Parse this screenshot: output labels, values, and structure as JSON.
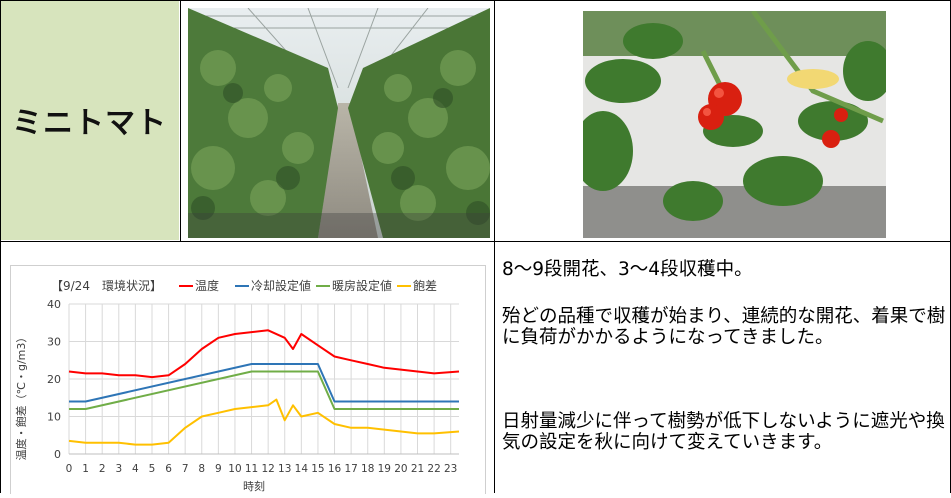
{
  "crop_name": "ミニトマト",
  "photos": {
    "greenhouse": "greenhouse-rows-photo",
    "tomatoes": "ripe-cherry-tomatoes-photo"
  },
  "notes": [
    "8～9段開花、3～4段収穫中。",
    "殆どの品種で収穫が始まり、連続的な開花、着果で樹に負荷がかかるようになってきました。",
    "日射量減少に伴って樹勢が低下しないように遮光や換気の設定を秋に向けて変えていきます。"
  ],
  "colors": {
    "title_bg": "#d7e4bd",
    "temp": "#ff0000",
    "cooling": "#2e75b6",
    "heating": "#70ad47",
    "saturation": "#ffc000"
  },
  "chart_data": {
    "type": "line",
    "title": "【9/24　環境状況】",
    "xlabel": "時刻",
    "ylabel": "温度・飽差（℃・g/m3）",
    "x_ticks": [
      "0",
      "1",
      "2",
      "3",
      "4",
      "5",
      "6",
      "7",
      "8",
      "9",
      "10",
      "11",
      "12",
      "13",
      "14",
      "15",
      "16",
      "17",
      "18",
      "19",
      "20",
      "21",
      "22",
      "23"
    ],
    "xlim": [
      0,
      23.5
    ],
    "ylim": [
      0,
      40
    ],
    "y_ticks": [
      "0",
      "10",
      "20",
      "30",
      "40"
    ],
    "grid": true,
    "legend": "top",
    "series": [
      {
        "name": "温度",
        "color": "#ff0000",
        "x": [
          0,
          1,
          2,
          3,
          4,
          5,
          6,
          7,
          8,
          9,
          10,
          11,
          12,
          13,
          13.5,
          14,
          15,
          16,
          17,
          18,
          19,
          20,
          21,
          22,
          23.5
        ],
        "y": [
          22,
          21.5,
          21.5,
          21,
          21,
          20.5,
          21,
          24,
          28,
          31,
          32,
          32.5,
          33,
          31,
          28,
          32,
          29,
          26,
          25,
          24,
          23,
          22.5,
          22,
          21.5,
          22
        ]
      },
      {
        "name": "冷却設定値",
        "color": "#2e75b6",
        "x": [
          0,
          1,
          11,
          15,
          16,
          23.5
        ],
        "y": [
          14,
          14,
          24,
          24,
          14,
          14
        ]
      },
      {
        "name": "暖房設定値",
        "color": "#70ad47",
        "x": [
          0,
          1,
          11,
          15,
          16,
          23.5
        ],
        "y": [
          12,
          12,
          22,
          22,
          12,
          12
        ]
      },
      {
        "name": "飽差",
        "color": "#ffc000",
        "x": [
          0,
          1,
          2,
          3,
          4,
          5,
          6,
          7,
          8,
          9,
          10,
          11,
          12,
          12.5,
          13,
          13.5,
          14,
          15,
          16,
          17,
          18,
          19,
          20,
          21,
          22,
          23.5
        ],
        "y": [
          3.5,
          3,
          3,
          3,
          2.5,
          2.5,
          3,
          7,
          10,
          11,
          12,
          12.5,
          13,
          14.5,
          9,
          13,
          10,
          11,
          8,
          7,
          7,
          6.5,
          6,
          5.5,
          5.5,
          6
        ]
      }
    ]
  }
}
